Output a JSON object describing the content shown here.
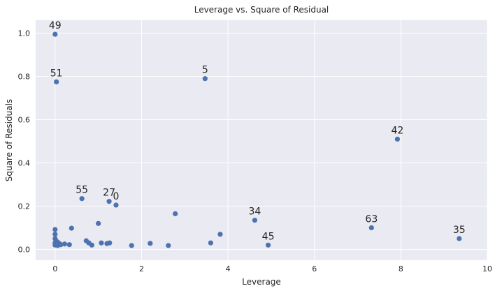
{
  "chart_data": {
    "type": "scatter",
    "title": "Leverage vs. Square of Residual",
    "xlabel": "Leverage",
    "ylabel": "Square of Residuals",
    "xlim": [
      -0.45,
      10
    ],
    "ylim": [
      -0.05,
      1.06
    ],
    "xticks": [
      0,
      2,
      4,
      6,
      8,
      10
    ],
    "yticks": [
      0.0,
      0.2,
      0.4,
      0.6,
      0.8,
      1.0
    ],
    "grid": true,
    "colors": {
      "background": "#eaeaf2",
      "grid": "#ffffff",
      "point": "#4c72b0"
    },
    "points": [
      {
        "x": 0.0,
        "y": 0.995,
        "label": "49"
      },
      {
        "x": 0.03,
        "y": 0.775,
        "label": "51"
      },
      {
        "x": 3.47,
        "y": 0.79,
        "label": "5"
      },
      {
        "x": 7.92,
        "y": 0.51,
        "label": "42"
      },
      {
        "x": 0.62,
        "y": 0.235,
        "label": "55"
      },
      {
        "x": 1.25,
        "y": 0.222,
        "label": "27"
      },
      {
        "x": 1.41,
        "y": 0.205,
        "label": "0"
      },
      {
        "x": 4.62,
        "y": 0.135,
        "label": "34"
      },
      {
        "x": 7.32,
        "y": 0.1,
        "label": "63"
      },
      {
        "x": 4.93,
        "y": 0.02,
        "label": "45"
      },
      {
        "x": 9.35,
        "y": 0.05,
        "label": "35"
      },
      {
        "x": 2.78,
        "y": 0.165,
        "label": ""
      },
      {
        "x": 1.0,
        "y": 0.12,
        "label": ""
      },
      {
        "x": 0.38,
        "y": 0.098,
        "label": ""
      },
      {
        "x": 0.0,
        "y": 0.092,
        "label": ""
      },
      {
        "x": 0.0,
        "y": 0.07,
        "label": ""
      },
      {
        "x": 0.0,
        "y": 0.05,
        "label": ""
      },
      {
        "x": 0.02,
        "y": 0.04,
        "label": ""
      },
      {
        "x": 0.05,
        "y": 0.035,
        "label": ""
      },
      {
        "x": 0.0,
        "y": 0.03,
        "label": ""
      },
      {
        "x": 0.02,
        "y": 0.025,
        "label": ""
      },
      {
        "x": 0.0,
        "y": 0.02,
        "label": ""
      },
      {
        "x": 0.06,
        "y": 0.018,
        "label": ""
      },
      {
        "x": 0.1,
        "y": 0.027,
        "label": ""
      },
      {
        "x": 0.13,
        "y": 0.022,
        "label": ""
      },
      {
        "x": 0.22,
        "y": 0.025,
        "label": ""
      },
      {
        "x": 0.33,
        "y": 0.022,
        "label": ""
      },
      {
        "x": 0.72,
        "y": 0.04,
        "label": ""
      },
      {
        "x": 0.78,
        "y": 0.03,
        "label": ""
      },
      {
        "x": 0.85,
        "y": 0.02,
        "label": ""
      },
      {
        "x": 1.07,
        "y": 0.03,
        "label": ""
      },
      {
        "x": 1.2,
        "y": 0.027,
        "label": ""
      },
      {
        "x": 1.26,
        "y": 0.03,
        "label": ""
      },
      {
        "x": 1.77,
        "y": 0.018,
        "label": ""
      },
      {
        "x": 2.2,
        "y": 0.028,
        "label": ""
      },
      {
        "x": 2.62,
        "y": 0.018,
        "label": ""
      },
      {
        "x": 3.6,
        "y": 0.03,
        "label": ""
      },
      {
        "x": 3.82,
        "y": 0.07,
        "label": ""
      }
    ]
  }
}
